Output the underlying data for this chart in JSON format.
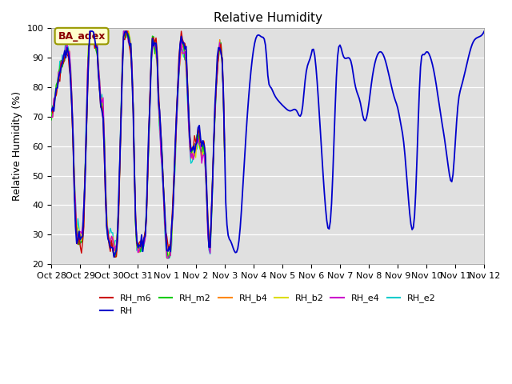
{
  "title": "Relative Humidity",
  "ylabel": "Relative Humidity (%)",
  "ylim": [
    20,
    100
  ],
  "bg_color": "#e0e0e0",
  "series_colors": {
    "RH_m6": "#cc0000",
    "RH": "#0000cc",
    "RH_m2": "#00cc00",
    "RH_b4": "#ff8800",
    "RH_b2": "#dddd00",
    "RH_e4": "#cc00cc",
    "RH_e2": "#00cccc"
  },
  "xtick_labels": [
    "Oct 28",
    "Oct 29",
    "Oct 30",
    "Oct 31",
    "Nov 1",
    "Nov 2",
    "Nov 3",
    "Nov 4",
    "Nov 5",
    "Nov 6",
    "Nov 7",
    "Nov 8",
    "Nov 9",
    "Nov 10",
    "Nov 11",
    "Nov 12"
  ],
  "annotation_label": "BA_adex",
  "annotation_color": "#8b0000",
  "annotation_bg": "#ffffcc",
  "annotation_border": "#999900",
  "rh_waypoints_t": [
    6.0,
    6.05,
    6.2,
    6.5,
    6.7,
    6.9,
    7.1,
    7.3,
    7.45,
    7.5,
    7.6,
    7.7,
    7.9,
    8.1,
    8.3,
    8.5,
    8.7,
    8.8,
    9.0,
    9.05,
    9.2,
    9.5,
    9.7,
    9.9,
    10.1,
    10.3,
    10.4,
    10.5,
    10.6,
    10.7,
    10.8,
    10.9,
    11.1,
    11.3,
    11.5,
    11.7,
    11.9,
    12.0,
    12.1,
    12.2,
    12.4,
    12.6,
    12.8,
    12.9,
    13.0,
    13.1,
    13.3,
    13.5,
    13.6,
    13.7,
    13.8,
    13.9,
    14.0,
    14.1,
    14.2,
    14.4,
    14.6,
    14.8,
    15.0
  ],
  "rh_waypoints_v": [
    54,
    39,
    28,
    28,
    57,
    84,
    97,
    97,
    91,
    84,
    80,
    78,
    75,
    73,
    72,
    72,
    73,
    83,
    91,
    93,
    83,
    39,
    39,
    88,
    91,
    90,
    88,
    82,
    78,
    75,
    70,
    69,
    82,
    91,
    91,
    84,
    76,
    73,
    68,
    62,
    39,
    39,
    88,
    91,
    92,
    91,
    83,
    70,
    64,
    57,
    50,
    49,
    62,
    75,
    80,
    88,
    95,
    97,
    99
  ],
  "multi_waypoints_t": [
    0,
    0.1,
    0.3,
    0.5,
    0.6,
    0.7,
    0.85,
    0.95,
    1.0,
    1.1,
    1.2,
    1.3,
    1.5,
    1.6,
    1.7,
    1.8,
    1.9,
    2.0,
    2.05,
    2.1,
    2.3,
    2.5,
    2.7,
    2.75,
    2.8,
    2.85,
    2.9,
    3.0,
    3.05,
    3.1,
    3.3,
    3.5,
    3.6,
    3.65,
    3.7,
    3.8,
    3.9,
    4.0,
    4.05,
    4.1,
    4.3,
    4.5,
    4.6,
    4.65,
    4.7,
    4.75,
    4.8,
    4.9,
    5.0,
    5.1,
    5.2,
    5.3,
    5.4,
    5.5,
    5.6,
    5.65,
    5.7,
    5.8,
    5.9,
    6.0
  ],
  "multi_waypoints_v": [
    70,
    75,
    85,
    91,
    90,
    75,
    32,
    27,
    26,
    31,
    60,
    93,
    95,
    89,
    74,
    68,
    36,
    26,
    25,
    25,
    30,
    97,
    95,
    93,
    84,
    65,
    40,
    26,
    25,
    26,
    40,
    97,
    95,
    93,
    81,
    63,
    43,
    26,
    25,
    26,
    63,
    97,
    95,
    93,
    85,
    74,
    63,
    60,
    62,
    65,
    60,
    60,
    40,
    27,
    55,
    68,
    80,
    92,
    92,
    60
  ]
}
